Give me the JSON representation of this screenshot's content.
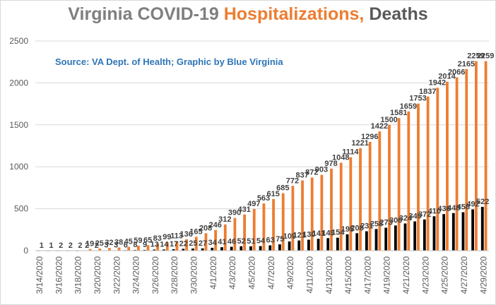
{
  "title": {
    "part1": "Virginia COVID-19 ",
    "part2": "Hospitalizations,",
    "part3": " Deaths"
  },
  "source": "Source: VA Dept. of Health; Graphic by Blue Virginia",
  "colors": {
    "hospitalizations": "#ed7d31",
    "deaths": "#000000",
    "title_gray": "#7f7f7f",
    "title_orange": "#ed7d31",
    "title_dark": "#595959",
    "source_blue": "#2e75b6",
    "grid": "#d9d9d9",
    "axis_text": "#595959",
    "label_text": "#404040"
  },
  "chart_data": {
    "type": "bar",
    "categories": [
      "3/14/2020",
      "3/15/2020",
      "3/16/2020",
      "3/17/2020",
      "3/18/2020",
      "3/19/2020",
      "3/20/2020",
      "3/21/2020",
      "3/22/2020",
      "3/23/2020",
      "3/24/2020",
      "3/25/2020",
      "3/26/2020",
      "3/27/2020",
      "3/28/2020",
      "3/29/2020",
      "3/30/2020",
      "3/31/2020",
      "4/1/2020",
      "4/2/2020",
      "4/3/2020",
      "4/4/2020",
      "4/5/2020",
      "4/6/2020",
      "4/7/2020",
      "4/8/2020",
      "4/9/2020",
      "4/10/2020",
      "4/11/2020",
      "4/12/2020",
      "4/13/2020",
      "4/14/2020",
      "4/15/2020",
      "4/16/2020",
      "4/17/2020",
      "4/18/2020",
      "4/19/2020",
      "4/20/2020",
      "4/21/2020",
      "4/22/2020",
      "4/23/2020",
      "4/24/2020",
      "4/25/2020",
      "4/26/2020",
      "4/27/2020",
      "4/28/2020",
      "4/29/2020"
    ],
    "tick_labels": [
      "3/14/2020",
      "3/16/2020",
      "3/18/2020",
      "3/20/2020",
      "3/22/2020",
      "3/24/2020",
      "3/26/2020",
      "3/28/2020",
      "3/30/2020",
      "4/1/2020",
      "4/3/2020",
      "4/5/2020",
      "4/7/2020",
      "4/9/2020",
      "4/11/2020",
      "4/13/2020",
      "4/15/2020",
      "4/17/2020",
      "4/19/2020",
      "4/21/2020",
      "4/23/2020",
      "4/25/2020",
      "4/27/2020",
      "4/29/2020"
    ],
    "series": [
      {
        "key": "hospitalizations",
        "values": [
          1,
          1,
          2,
          2,
          2,
          19,
          25,
          32,
          38,
          45,
          59,
          65,
          83,
          99,
          113,
          136,
          165,
          208,
          246,
          312,
          390,
          431,
          497,
          563,
          615,
          685,
          772,
          837,
          872,
          903,
          978,
          1048,
          1114,
          1221,
          1296,
          1422,
          1500,
          1581,
          1659,
          1753,
          1837,
          1942,
          2014,
          2066,
          2165,
          2259,
          2259
        ]
      },
      {
        "key": "deaths",
        "values": [
          0,
          0,
          0,
          0,
          0,
          2,
          2,
          3,
          3,
          6,
          8,
          9,
          13,
          14,
          17,
          22,
          25,
          27,
          34,
          41,
          46,
          52,
          51,
          54,
          63,
          75,
          109,
          121,
          130,
          141,
          149,
          154,
          195,
          208,
          231,
          258,
          273,
          300,
          324,
          349,
          372,
          410,
          436,
          448,
          458,
          492,
          522
        ]
      }
    ],
    "xlabel": "",
    "ylabel": "",
    "ylim": [
      0,
      2500
    ],
    "yticks": [
      0,
      500,
      1000,
      1500,
      2000,
      2500
    ],
    "grid": true,
    "legend": "none"
  }
}
